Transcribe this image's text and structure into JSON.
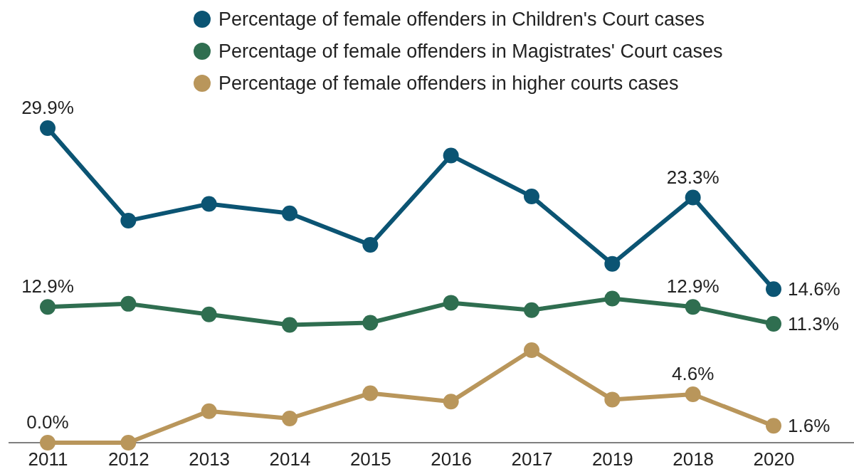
{
  "chart_data": {
    "type": "line",
    "categories": [
      "2011",
      "2012",
      "2013",
      "2014",
      "2015",
      "2016",
      "2017",
      "2019",
      "2018",
      "2020"
    ],
    "series": [
      {
        "name": "Percentage of female offenders in Children's Court cases",
        "color": "#0b5473",
        "values": [
          29.9,
          21.1,
          22.7,
          21.8,
          18.8,
          27.3,
          23.4,
          17.0,
          23.3,
          14.6
        ],
        "value_labels": [
          "29.9%",
          null,
          null,
          null,
          null,
          null,
          null,
          null,
          "23.3%",
          "14.6%"
        ]
      },
      {
        "name": "Percentage of female offenders in Magistrates' Court cases",
        "color": "#2f6e50",
        "values": [
          12.9,
          13.2,
          12.2,
          11.2,
          11.4,
          13.3,
          12.6,
          13.7,
          12.9,
          11.3
        ],
        "value_labels": [
          "12.9%",
          null,
          null,
          null,
          null,
          null,
          null,
          null,
          "12.9%",
          "11.3%"
        ]
      },
      {
        "name": "Percentage of female offenders in higher courts cases",
        "color": "#b9965b",
        "values": [
          0.0,
          0.0,
          3.0,
          2.3,
          4.7,
          3.9,
          8.8,
          4.1,
          4.6,
          1.6
        ],
        "value_labels": [
          "0.0%",
          null,
          null,
          null,
          null,
          null,
          null,
          null,
          "4.6%",
          "1.6%"
        ]
      }
    ],
    "legend": "top right",
    "marker": "circle",
    "line_style": "solid",
    "grid": false,
    "tick_labels": "x"
  }
}
